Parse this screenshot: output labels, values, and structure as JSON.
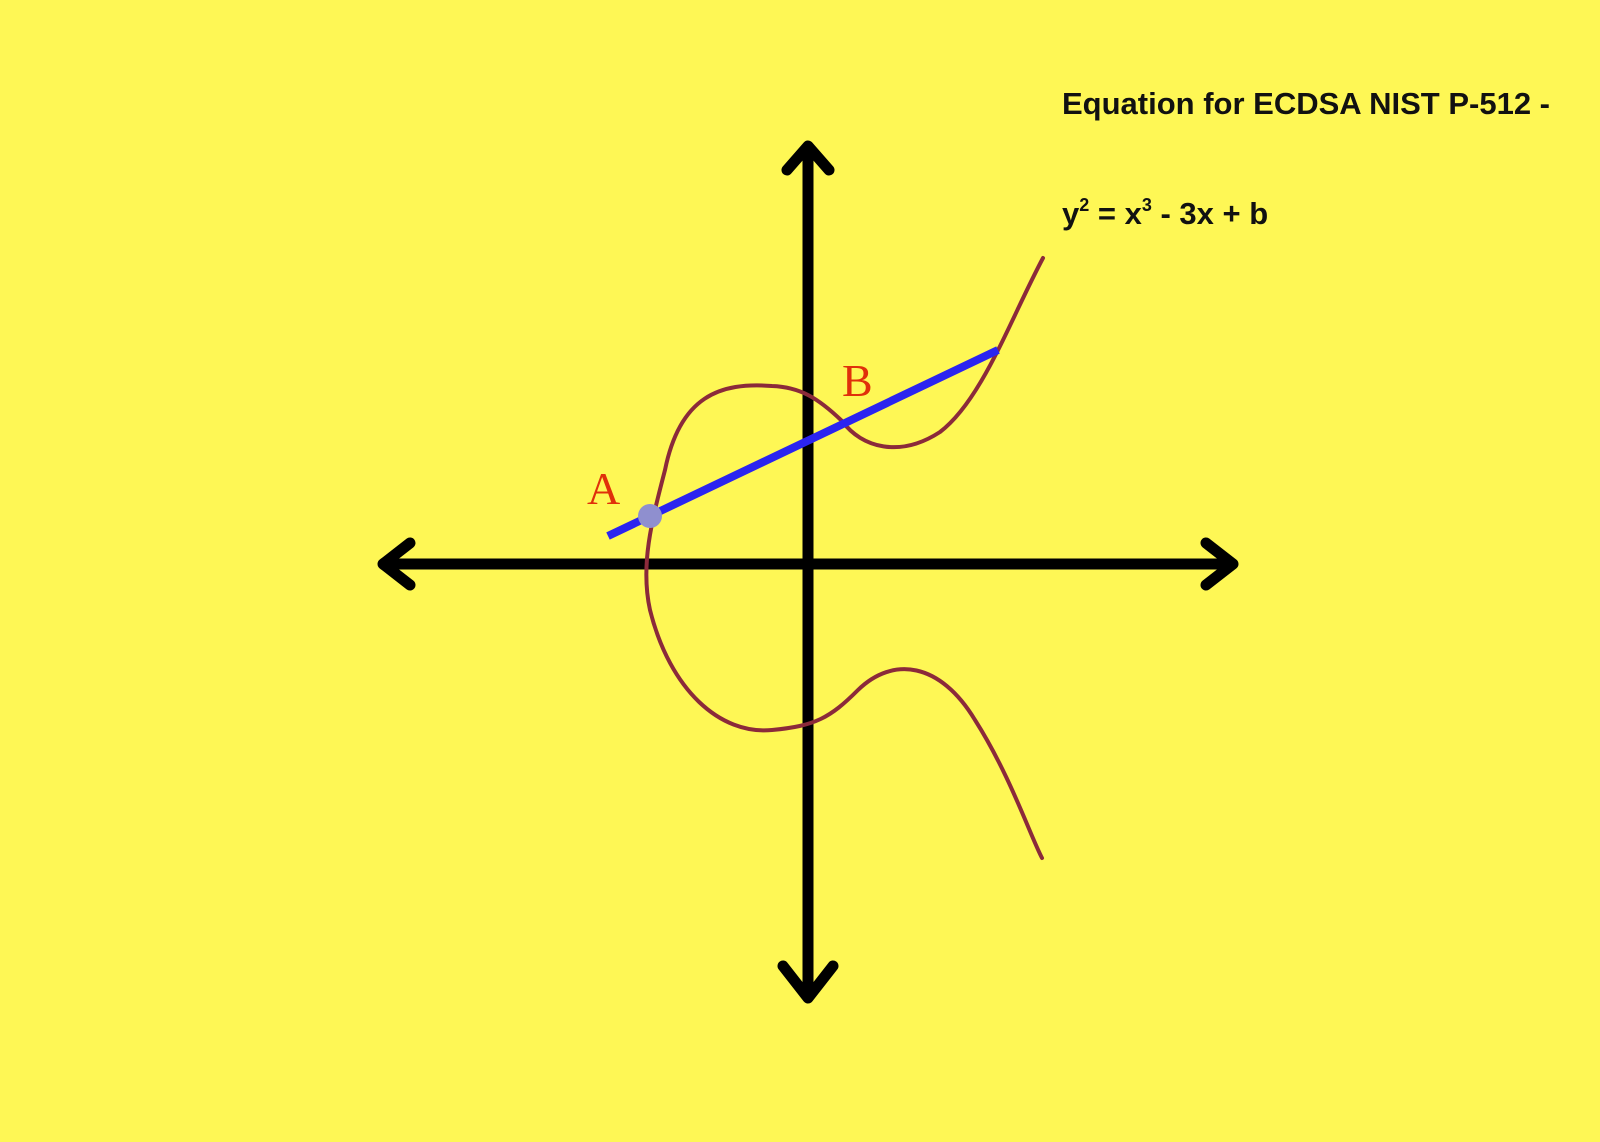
{
  "caption": {
    "title": "Equation for ECDSA NIST P-512 -",
    "equation": {
      "y": "y",
      "y_exp": "2",
      "eq": " = ",
      "x": "x",
      "x_exp": "3",
      "rest": " - 3x + b"
    }
  },
  "points": {
    "a_label": "A",
    "b_label": "B"
  },
  "colors": {
    "background": "#fef755",
    "axes": "#000000",
    "curve": "#8b2a3a",
    "secant_line": "#2b24f0",
    "point_marker": "#8f8fcf",
    "point_labels": "#e0300a",
    "text": "#111111"
  }
}
